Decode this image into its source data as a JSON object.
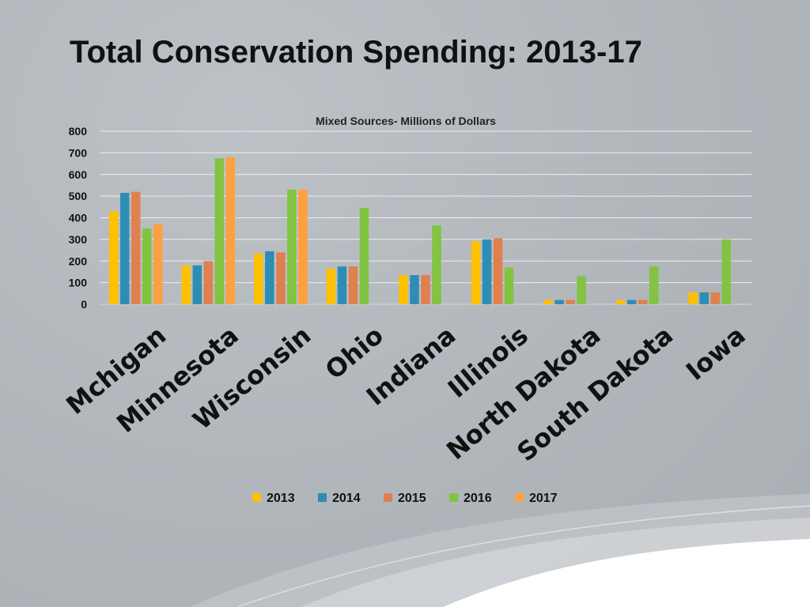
{
  "slide": {
    "title": "Total Conservation Spending: 2013-17"
  },
  "colors": {
    "series": [
      "#ffc000",
      "#2e8db4",
      "#e0804f",
      "#82c341",
      "#ffa040"
    ]
  },
  "chart_data": {
    "type": "bar",
    "title": "Mixed Sources- Millions of Dollars",
    "xlabel": "",
    "ylabel": "",
    "ylim": [
      0,
      800
    ],
    "yticks": [
      0,
      100,
      200,
      300,
      400,
      500,
      600,
      700,
      800
    ],
    "grid": true,
    "legend": "bottom-center",
    "categories": [
      "Mchigan",
      "Minnesota",
      "Wisconsin",
      "Ohio",
      "Indiana",
      "Illinois",
      "North Dakota",
      "South Dakota",
      "Iowa"
    ],
    "series": [
      {
        "name": "2013",
        "values": [
          430,
          180,
          235,
          165,
          135,
          290,
          20,
          20,
          55
        ]
      },
      {
        "name": "2014",
        "values": [
          515,
          180,
          245,
          175,
          135,
          300,
          20,
          20,
          55
        ]
      },
      {
        "name": "2015",
        "values": [
          520,
          200,
          240,
          175,
          135,
          305,
          20,
          20,
          55
        ]
      },
      {
        "name": "2016",
        "values": [
          350,
          675,
          530,
          445,
          365,
          170,
          130,
          175,
          300
        ]
      },
      {
        "name": "2017",
        "values": [
          370,
          680,
          530,
          null,
          null,
          null,
          null,
          null,
          null
        ]
      }
    ]
  }
}
